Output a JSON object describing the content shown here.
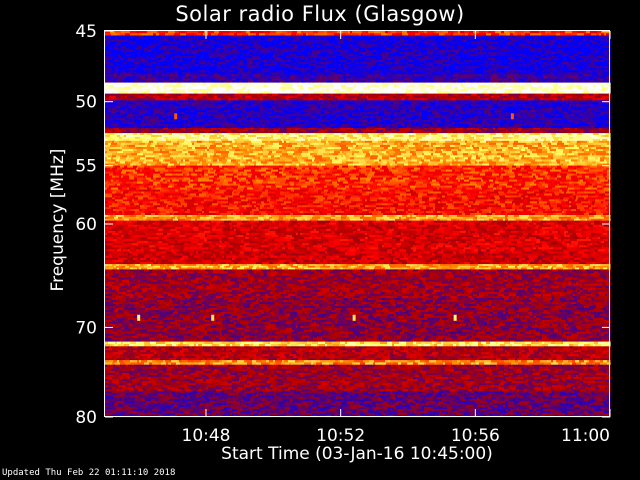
{
  "chart_data": {
    "type": "heatmap",
    "title": "Solar radio Flux (Glasgow)",
    "xlabel": "Start Time (03-Jan-16 10:45:00)",
    "ylabel": "Frequency [MHz]",
    "x_unit": "minutes after 10:45:00",
    "xlim": [
      0,
      15
    ],
    "ylim": [
      45,
      80
    ],
    "x_ticks": [
      {
        "value": 3,
        "label": "10:48"
      },
      {
        "value": 7,
        "label": "10:52"
      },
      {
        "value": 11,
        "label": "10:56"
      },
      {
        "value": 15,
        "label": "11:00"
      }
    ],
    "y_ticks": [
      {
        "value": 45,
        "label": "45"
      },
      {
        "value": 50,
        "label": "50"
      },
      {
        "value": 55,
        "label": "55"
      },
      {
        "value": 60,
        "label": "60"
      },
      {
        "value": 70,
        "label": "70"
      },
      {
        "value": 80,
        "label": "80"
      }
    ],
    "colormap": [
      "#0000ff",
      "#4b0082",
      "#b00000",
      "#ff0000",
      "#ff8c00",
      "#ffff66",
      "#ffffff"
    ],
    "frequency_bands": [
      {
        "freq_from": 45.0,
        "freq_to": 45.3,
        "intensity": 0.55
      },
      {
        "freq_from": 45.3,
        "freq_to": 48.0,
        "intensity": 0.05
      },
      {
        "freq_from": 48.0,
        "freq_to": 48.6,
        "intensity": 0.12
      },
      {
        "freq_from": 48.6,
        "freq_to": 49.4,
        "intensity": 0.97
      },
      {
        "freq_from": 49.4,
        "freq_to": 49.9,
        "intensity": 0.35
      },
      {
        "freq_from": 49.9,
        "freq_to": 52.0,
        "intensity": 0.08
      },
      {
        "freq_from": 52.0,
        "freq_to": 52.4,
        "intensity": 0.3
      },
      {
        "freq_from": 52.4,
        "freq_to": 53.0,
        "intensity": 0.85
      },
      {
        "freq_from": 53.0,
        "freq_to": 55.0,
        "intensity": 0.72
      },
      {
        "freq_from": 55.0,
        "freq_to": 57.0,
        "intensity": 0.55
      },
      {
        "freq_from": 57.0,
        "freq_to": 59.2,
        "intensity": 0.5
      },
      {
        "freq_from": 59.2,
        "freq_to": 59.7,
        "intensity": 0.7
      },
      {
        "freq_from": 59.7,
        "freq_to": 62.5,
        "intensity": 0.42
      },
      {
        "freq_from": 62.5,
        "freq_to": 63.7,
        "intensity": 0.4
      },
      {
        "freq_from": 63.7,
        "freq_to": 64.2,
        "intensity": 0.72
      },
      {
        "freq_from": 64.2,
        "freq_to": 67.0,
        "intensity": 0.3
      },
      {
        "freq_from": 67.0,
        "freq_to": 71.5,
        "intensity": 0.27
      },
      {
        "freq_from": 71.5,
        "freq_to": 72.0,
        "intensity": 0.8
      },
      {
        "freq_from": 72.0,
        "freq_to": 73.5,
        "intensity": 0.35
      },
      {
        "freq_from": 73.5,
        "freq_to": 74.0,
        "intensity": 0.68
      },
      {
        "freq_from": 74.0,
        "freq_to": 77.0,
        "intensity": 0.3
      },
      {
        "freq_from": 77.0,
        "freq_to": 80.0,
        "intensity": 0.2
      }
    ],
    "annotations": [
      {
        "time": 2.1,
        "freq": 51.1,
        "intensity": 0.6
      },
      {
        "time": 12.1,
        "freq": 51.1,
        "intensity": 0.6
      },
      {
        "time": 1.0,
        "freq": 69.0,
        "intensity": 0.85
      },
      {
        "time": 3.2,
        "freq": 69.0,
        "intensity": 0.8
      },
      {
        "time": 7.4,
        "freq": 69.0,
        "intensity": 0.8
      },
      {
        "time": 10.4,
        "freq": 69.0,
        "intensity": 0.85
      }
    ]
  },
  "footer": {
    "updated": "Updated Thu Feb 22 01:11:10 2018"
  }
}
